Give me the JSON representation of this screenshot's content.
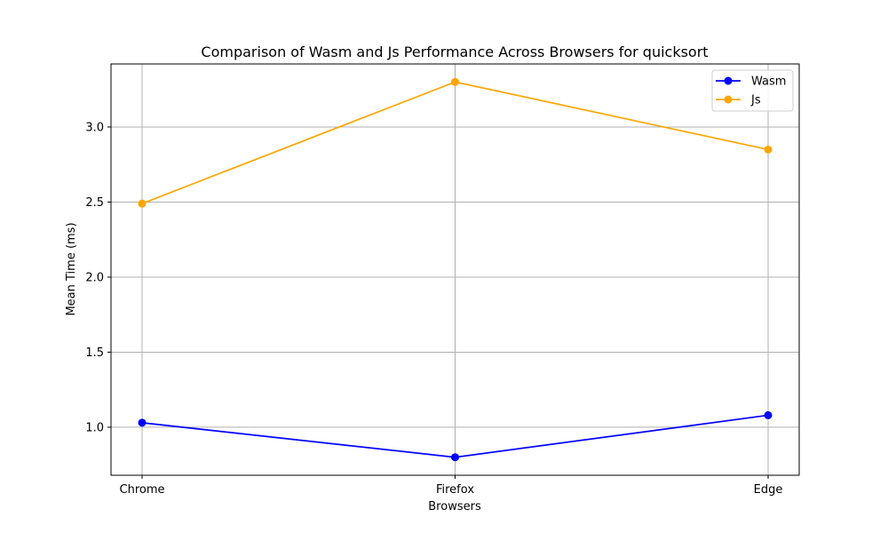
{
  "chart_data": {
    "type": "line",
    "title": "Comparison of Wasm and Js Performance Across Browsers for quicksort",
    "xlabel": "Browsers",
    "ylabel": "Mean Time (ms)",
    "categories": [
      "Chrome",
      "Firefox",
      "Edge"
    ],
    "ylim": [
      0.68,
      3.42
    ],
    "yticks": [
      "1.0",
      "1.5",
      "2.0",
      "2.5",
      "3.0"
    ],
    "grid": true,
    "legend_position": "top-right",
    "series": [
      {
        "name": "Wasm",
        "color": "#0000ff",
        "marker": "circle",
        "values": [
          1.03,
          0.8,
          1.08
        ]
      },
      {
        "name": "Js",
        "color": "#ffa500",
        "marker": "circle",
        "values": [
          2.49,
          3.3,
          2.85
        ]
      }
    ]
  }
}
